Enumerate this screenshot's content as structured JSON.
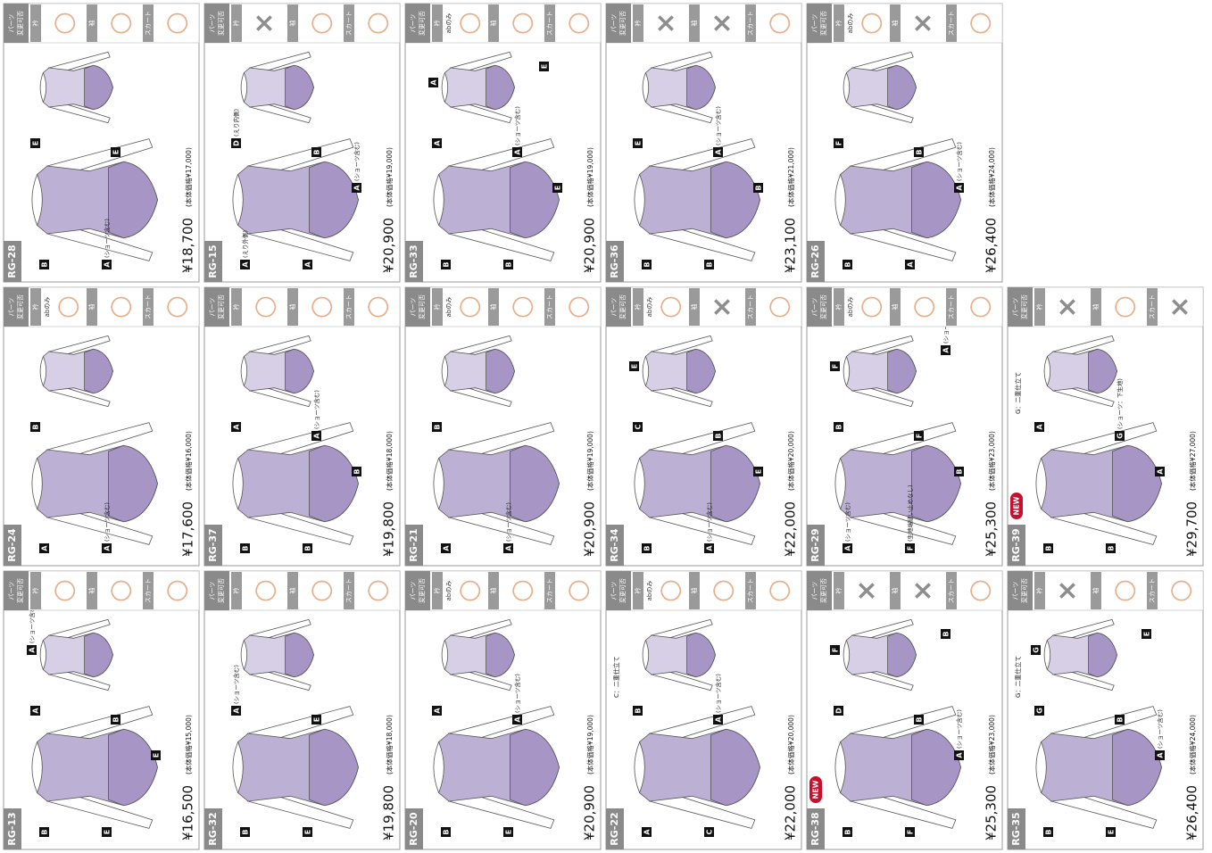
{
  "parts_header": [
    "パーツ",
    "変更可否"
  ],
  "part_names": [
    "衿",
    "袖",
    "スカート"
  ],
  "items": [
    {
      "code": "RG-13",
      "price": "¥16,500",
      "base_price": "(本体価格¥15,000)",
      "parts": [
        {
          "mark": "○"
        },
        {
          "mark": "○"
        },
        {
          "mark": "○"
        }
      ],
      "callouts": [
        {
          "tag": "B"
        },
        {
          "tag": "A"
        },
        {
          "tag": "E"
        },
        {
          "tag": "B"
        },
        {
          "tag": "E"
        },
        {
          "tag": "A",
          "note": "(ショーツ含む)"
        }
      ]
    },
    {
      "code": "RG-24",
      "price": "¥17,600",
      "base_price": "(本体価格¥16,000)",
      "parts": [
        {
          "mark": "○",
          "note": "abのみ"
        },
        {
          "mark": "○"
        },
        {
          "mark": "○"
        }
      ],
      "callouts": [
        {
          "tag": "A"
        },
        {
          "tag": "B"
        },
        {
          "tag": "A",
          "note": "(ショーツ含む)"
        }
      ]
    },
    {
      "code": "RG-28",
      "price": "¥18,700",
      "base_price": "(本体価格¥17,000)",
      "parts": [
        {
          "mark": "○"
        },
        {
          "mark": "○"
        },
        {
          "mark": "○"
        }
      ],
      "callouts": [
        {
          "tag": "B"
        },
        {
          "tag": "E"
        },
        {
          "tag": "A",
          "note": "(ショーツ含む)"
        },
        {
          "tag": "E"
        }
      ]
    },
    {
      "code": "RG-32",
      "price": "¥19,800",
      "base_price": "(本体価格¥18,000)",
      "parts": [
        {
          "mark": "○"
        },
        {
          "mark": "○"
        },
        {
          "mark": "○"
        }
      ],
      "callouts": [
        {
          "tag": "B"
        },
        {
          "tag": "A",
          "note": "(ショーツ含む)"
        },
        {
          "tag": "E"
        },
        {
          "tag": "E"
        }
      ]
    },
    {
      "code": "RG-37",
      "price": "¥19,800",
      "base_price": "(本体価格¥18,000)",
      "parts": [
        {
          "mark": "○"
        },
        {
          "mark": "○"
        },
        {
          "mark": "○"
        }
      ],
      "callouts": [
        {
          "tag": "B"
        },
        {
          "tag": "A"
        },
        {
          "tag": "B"
        },
        {
          "tag": "A",
          "note": "(ショーツ含む)"
        },
        {
          "tag": "B"
        }
      ]
    },
    {
      "code": "RG-15",
      "price": "¥20,900",
      "base_price": "(本体価格¥19,000)",
      "parts": [
        {
          "mark": "×"
        },
        {
          "mark": "○"
        },
        {
          "mark": "○"
        }
      ],
      "callouts": [
        {
          "tag": "A",
          "note": "(えり外側)"
        },
        {
          "tag": "D",
          "note": "(えり内側)"
        },
        {
          "tag": "A"
        },
        {
          "tag": "B"
        },
        {
          "tag": "A",
          "note": "(ショーツ含む)"
        }
      ]
    },
    {
      "code": "RG-20",
      "price": "¥20,900",
      "base_price": "(本体価格¥19,000)",
      "parts": [
        {
          "mark": "○",
          "note": "abのみ"
        },
        {
          "mark": "○"
        },
        {
          "mark": "○"
        }
      ],
      "callouts": [
        {
          "tag": "B"
        },
        {
          "tag": "A"
        },
        {
          "tag": "E"
        },
        {
          "tag": "A",
          "note": "(ショーツ含む)"
        }
      ]
    },
    {
      "code": "RG-21",
      "price": "¥20,900",
      "base_price": "(本体価格¥19,000)",
      "parts": [
        {
          "mark": "○",
          "note": "abのみ"
        },
        {
          "mark": "○"
        },
        {
          "mark": "○"
        }
      ],
      "callouts": [
        {
          "tag": "A"
        },
        {
          "tag": "B"
        },
        {
          "tag": "A",
          "note": "(ショーツ含む)"
        }
      ]
    },
    {
      "code": "RG-33",
      "price": "¥20,900",
      "base_price": "(本体価格¥19,000)",
      "parts": [
        {
          "mark": "○",
          "note": "abのみ"
        },
        {
          "mark": "○"
        },
        {
          "mark": "○"
        }
      ],
      "callouts": [
        {
          "tag": "B"
        },
        {
          "tag": "A"
        },
        {
          "tag": "B"
        },
        {
          "tag": "A",
          "note": "(ショーツ含む)"
        },
        {
          "tag": "E"
        },
        {
          "tag": "A"
        },
        {
          "tag": "E"
        }
      ]
    },
    {
      "code": "RG-22",
      "price": "¥22,000",
      "base_price": "(本体価格¥20,000)",
      "fabric_note": "C：二重仕立て",
      "parts": [
        {
          "mark": "○",
          "note": "abのみ"
        },
        {
          "mark": "○"
        },
        {
          "mark": "○"
        }
      ],
      "callouts": [
        {
          "tag": "A"
        },
        {
          "tag": "B"
        },
        {
          "tag": "C"
        },
        {
          "tag": "A",
          "note": "(ショーツ含む)"
        }
      ]
    },
    {
      "code": "RG-34",
      "price": "¥22,000",
      "base_price": "(本体価格¥20,000)",
      "parts": [
        {
          "mark": "○",
          "note": "abのみ"
        },
        {
          "mark": "×"
        },
        {
          "mark": "○"
        }
      ],
      "callouts": [
        {
          "tag": "B"
        },
        {
          "tag": "C"
        },
        {
          "tag": "A",
          "note": "(ショーツ含む)"
        },
        {
          "tag": "B"
        },
        {
          "tag": "E"
        },
        {
          "tag": "E"
        }
      ]
    },
    {
      "code": "RG-36",
      "price": "¥23,100",
      "base_price": "(本体価格¥21,000)",
      "parts": [
        {
          "mark": "×"
        },
        {
          "mark": "×"
        },
        {
          "mark": "○"
        }
      ],
      "callouts": [
        {
          "tag": "B"
        },
        {
          "tag": "E"
        },
        {
          "tag": "B"
        },
        {
          "tag": "A",
          "note": "(ショーツ含む)"
        },
        {
          "tag": "B"
        }
      ]
    },
    {
      "code": "RG-38",
      "badge": "NEW",
      "price": "¥25,300",
      "base_price": "(本体価格¥23,000)",
      "parts": [
        {
          "mark": "×"
        },
        {
          "mark": "×"
        },
        {
          "mark": "○"
        }
      ],
      "callouts": [
        {
          "tag": "B"
        },
        {
          "tag": "D"
        },
        {
          "tag": "F"
        },
        {
          "tag": "B"
        },
        {
          "tag": "A",
          "note": "(ショーツ含む)"
        },
        {
          "tag": "F"
        },
        {
          "tag": "B"
        }
      ]
    },
    {
      "code": "RG-29",
      "price": "¥25,300",
      "base_price": "(本体価格¥23,000)",
      "parts": [
        {
          "mark": "○",
          "note": "abのみ"
        },
        {
          "mark": "○"
        },
        {
          "mark": "○"
        }
      ],
      "callouts": [
        {
          "tag": "A",
          "note": "(ショーツ含む)"
        },
        {
          "tag": "B"
        },
        {
          "tag": "F",
          "note": "(生地端縫い止めなし)"
        },
        {
          "tag": "F"
        },
        {
          "tag": "B"
        },
        {
          "tag": "F"
        },
        {
          "tag": "A",
          "note": "(ショーツ含む)"
        }
      ]
    },
    {
      "code": "RG-26",
      "price": "¥26,400",
      "base_price": "(本体価格¥24,000)",
      "parts": [
        {
          "mark": "○",
          "note": "abのみ"
        },
        {
          "mark": "×"
        },
        {
          "mark": "○"
        }
      ],
      "callouts": [
        {
          "tag": "B"
        },
        {
          "tag": "F"
        },
        {
          "tag": "A"
        },
        {
          "tag": "B"
        },
        {
          "tag": "A",
          "note": "(ショーツ含む)"
        }
      ]
    },
    {
      "code": "RG-35",
      "price": "¥26,400",
      "base_price": "(本体価格¥24,000)",
      "fabric_note": "G：二重仕立て",
      "parts": [
        {
          "mark": "×"
        },
        {
          "mark": "○"
        },
        {
          "mark": "○"
        }
      ],
      "callouts": [
        {
          "tag": "B"
        },
        {
          "tag": "G"
        },
        {
          "tag": "E"
        },
        {
          "tag": "B"
        },
        {
          "tag": "A",
          "note": "(ショーツ含む)"
        },
        {
          "tag": "G"
        },
        {
          "tag": "E"
        }
      ]
    },
    {
      "code": "RG-39",
      "badge": "NEW",
      "price": "¥29,700",
      "base_price": "(本体価格¥27,000)",
      "fabric_note": "G：二重仕立て",
      "parts": [
        {
          "mark": "×"
        },
        {
          "mark": "○"
        },
        {
          "mark": "×"
        }
      ],
      "callouts": [
        {
          "tag": "B"
        },
        {
          "tag": "A"
        },
        {
          "tag": "B"
        },
        {
          "tag": "G",
          "note": "(ショーツ：下生地)"
        },
        {
          "tag": "A"
        }
      ]
    }
  ]
}
